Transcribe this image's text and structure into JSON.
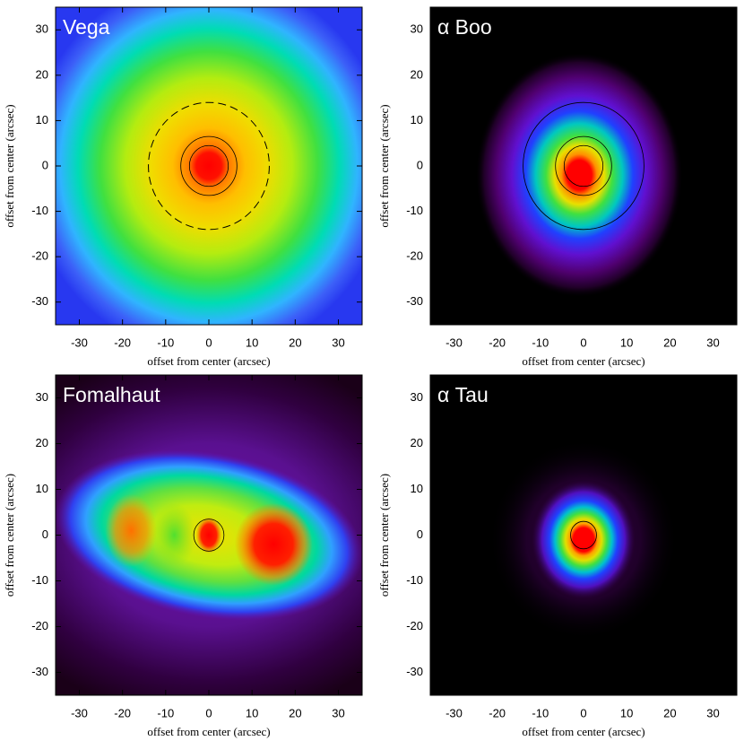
{
  "chart_data": [
    {
      "type": "image",
      "title": "Vega",
      "xlabel": "offset from center (arcsec)",
      "ylabel": "offset from center (arcsec)",
      "xlim": [
        -35.5,
        35.5
      ],
      "ylim": [
        -35,
        35
      ],
      "xticks": [
        -30,
        -20,
        -10,
        0,
        10,
        20,
        30
      ],
      "yticks": [
        -30,
        -20,
        -10,
        0,
        10,
        20,
        30
      ]
    },
    {
      "type": "image",
      "title": "α Boo",
      "xlabel": "offset from center (arcsec)",
      "ylabel": "offset from center (arcsec)",
      "xlim": [
        -35.5,
        35.5
      ],
      "ylim": [
        -35,
        35
      ],
      "xticks": [
        -30,
        -20,
        -10,
        0,
        10,
        20,
        30
      ],
      "yticks": [
        -30,
        -20,
        -10,
        0,
        10,
        20,
        30
      ]
    },
    {
      "type": "image",
      "title": "Fomalhaut",
      "xlabel": "offset from center (arcsec)",
      "ylabel": "offset from center (arcsec)",
      "xlim": [
        -35.5,
        35.5
      ],
      "ylim": [
        -35,
        35
      ],
      "xticks": [
        -30,
        -20,
        -10,
        0,
        10,
        20,
        30
      ],
      "yticks": [
        -30,
        -20,
        -10,
        0,
        10,
        20,
        30
      ]
    },
    {
      "type": "image",
      "title": "α Tau",
      "xlabel": "offset from center (arcsec)",
      "ylabel": "offset from center (arcsec)",
      "xlim": [
        -35.5,
        35.5
      ],
      "ylim": [
        -35,
        35
      ],
      "xticks": [
        -30,
        -20,
        -10,
        0,
        10,
        20,
        30
      ],
      "yticks": [
        -30,
        -20,
        -10,
        0,
        10,
        20,
        30
      ]
    }
  ]
}
